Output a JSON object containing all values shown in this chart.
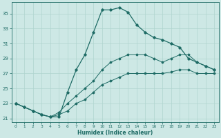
{
  "xlabel": "Humidex (Indice chaleur)",
  "background_color": "#cde8e5",
  "line_color": "#1e6b65",
  "grid_color": "#afd4cf",
  "xlim": [
    -0.5,
    23.5
  ],
  "ylim": [
    20.5,
    36.5
  ],
  "xticks": [
    0,
    1,
    2,
    3,
    4,
    5,
    6,
    7,
    8,
    9,
    10,
    11,
    12,
    13,
    14,
    15,
    16,
    17,
    18,
    19,
    20,
    21,
    22,
    23
  ],
  "yticks": [
    21,
    23,
    25,
    27,
    29,
    31,
    33,
    35
  ],
  "line1_x": [
    0,
    1,
    2,
    3,
    4,
    5,
    6,
    7,
    8,
    9,
    10,
    11,
    12,
    13,
    14,
    15,
    16,
    17,
    18,
    19,
    20,
    21,
    22,
    23
  ],
  "line1_y": [
    23.0,
    22.5,
    22.0,
    21.5,
    21.2,
    21.2,
    24.5,
    27.5,
    29.5,
    32.5,
    35.5,
    35.5,
    35.8,
    35.2,
    33.5,
    32.5,
    31.8,
    31.5,
    31.0,
    30.5,
    29.0,
    28.5,
    28.0,
    27.5
  ],
  "line2_x": [
    0,
    1,
    2,
    3,
    4,
    5,
    6,
    7,
    8,
    9,
    10,
    11,
    12,
    13,
    14,
    15,
    16,
    17,
    18,
    19,
    20,
    21,
    22,
    23
  ],
  "line2_y": [
    23.0,
    22.5,
    22.0,
    21.5,
    21.2,
    21.8,
    23.0,
    24.0,
    25.0,
    26.0,
    27.5,
    28.5,
    29.0,
    29.5,
    29.5,
    29.5,
    29.0,
    28.5,
    29.0,
    29.5,
    29.5,
    28.5,
    28.0,
    27.5
  ],
  "line3_x": [
    0,
    1,
    2,
    3,
    4,
    5,
    6,
    7,
    8,
    9,
    10,
    11,
    12,
    13,
    14,
    15,
    16,
    17,
    18,
    19,
    20,
    21,
    22,
    23
  ],
  "line3_y": [
    23.0,
    22.5,
    22.0,
    21.5,
    21.2,
    21.5,
    22.0,
    23.0,
    23.5,
    24.5,
    25.5,
    26.0,
    26.5,
    27.0,
    27.0,
    27.0,
    27.0,
    27.0,
    27.2,
    27.5,
    27.5,
    27.0,
    27.0,
    27.0
  ]
}
